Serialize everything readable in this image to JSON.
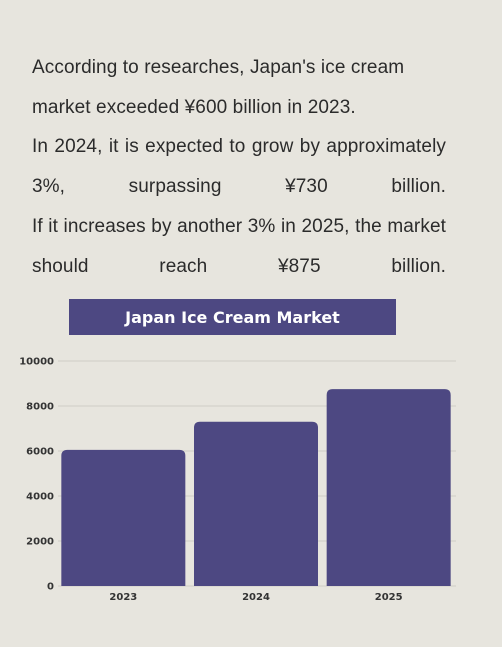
{
  "intro": {
    "lines": [
      "According to researches, Japan's ice cream",
      "market exceeded ¥600 billion in 2023.",
      "In 2024, it is expected to grow by approximately 3%, surpassing ¥730 billion.",
      "If it increases by another 3% in 2025, the market should reach ¥875 billion."
    ]
  },
  "chart_data": {
    "type": "bar",
    "title": "Japan Ice Cream Market",
    "categories": [
      "2023",
      "2024",
      "2025"
    ],
    "values": [
      6050,
      7300,
      8750
    ],
    "ylim": [
      0,
      10000
    ],
    "yticks": [
      0,
      2000,
      4000,
      6000,
      8000,
      10000
    ],
    "grid": true,
    "bar_color": "#4d4882",
    "grid_color": "#cfcdc6"
  }
}
